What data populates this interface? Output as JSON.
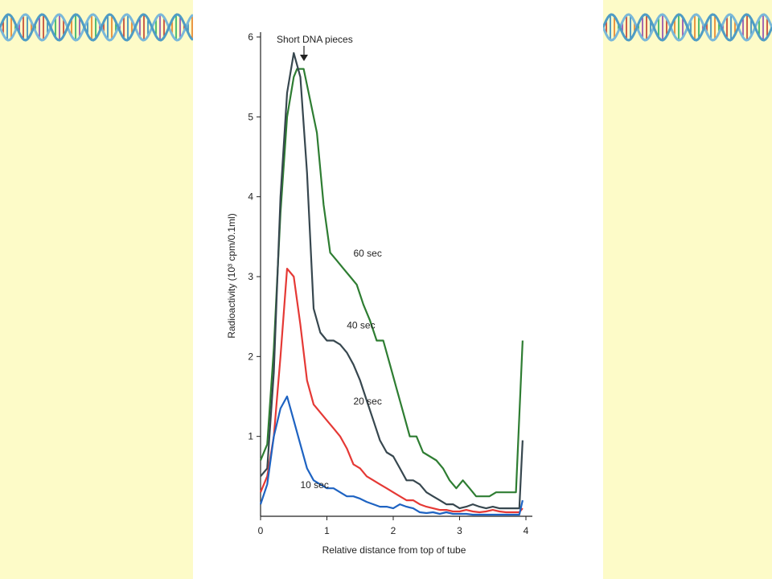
{
  "chart_data": {
    "type": "line",
    "xlabel": "Relative distance from top of tube",
    "ylabel": "Radioactivity (10³ cpm/0.1ml)",
    "xlim": [
      0,
      4
    ],
    "ylim": [
      0,
      6
    ],
    "x_ticks": [
      "0",
      "1",
      "2",
      "3",
      "4"
    ],
    "y_ticks": [
      "1",
      "2",
      "3",
      "4",
      "5",
      "6"
    ],
    "annotation": "Short DNA pieces",
    "series": [
      {
        "name": "60 sec",
        "color": "#2e7d32",
        "x": [
          0,
          0.1,
          0.2,
          0.3,
          0.4,
          0.5,
          0.55,
          0.65,
          0.75,
          0.85,
          0.95,
          1.05,
          1.15,
          1.25,
          1.35,
          1.45,
          1.55,
          1.65,
          1.75,
          1.85,
          1.95,
          2.05,
          2.15,
          2.25,
          2.35,
          2.45,
          2.55,
          2.65,
          2.75,
          2.85,
          2.95,
          3.05,
          3.15,
          3.25,
          3.35,
          3.45,
          3.55,
          3.65,
          3.75,
          3.85,
          3.95
        ],
        "y": [
          0.7,
          0.9,
          2.1,
          3.8,
          5.0,
          5.5,
          5.6,
          5.6,
          5.2,
          4.8,
          3.9,
          3.3,
          3.2,
          3.1,
          3.0,
          2.9,
          2.65,
          2.45,
          2.2,
          2.2,
          1.9,
          1.6,
          1.3,
          1.0,
          1.0,
          0.8,
          0.75,
          0.7,
          0.6,
          0.45,
          0.35,
          0.45,
          0.35,
          0.25,
          0.25,
          0.25,
          0.3,
          0.3,
          0.3,
          0.3,
          2.2
        ]
      },
      {
        "name": "40 sec",
        "color": "#37474f",
        "x": [
          0,
          0.1,
          0.2,
          0.3,
          0.4,
          0.5,
          0.6,
          0.7,
          0.8,
          0.9,
          1.0,
          1.1,
          1.2,
          1.3,
          1.4,
          1.5,
          1.6,
          1.7,
          1.8,
          1.9,
          2.0,
          2.1,
          2.2,
          2.3,
          2.4,
          2.5,
          2.6,
          2.7,
          2.8,
          2.9,
          3.0,
          3.1,
          3.2,
          3.3,
          3.4,
          3.5,
          3.6,
          3.7,
          3.8,
          3.9,
          3.95
        ],
        "y": [
          0.5,
          0.6,
          1.8,
          4.0,
          5.3,
          5.8,
          5.5,
          4.3,
          2.6,
          2.3,
          2.2,
          2.2,
          2.15,
          2.05,
          1.9,
          1.7,
          1.45,
          1.2,
          0.95,
          0.8,
          0.75,
          0.6,
          0.45,
          0.45,
          0.4,
          0.3,
          0.25,
          0.2,
          0.15,
          0.15,
          0.1,
          0.12,
          0.15,
          0.12,
          0.1,
          0.12,
          0.1,
          0.1,
          0.1,
          0.1,
          0.95
        ]
      },
      {
        "name": "20 sec",
        "color": "#e53935",
        "x": [
          0,
          0.1,
          0.2,
          0.3,
          0.4,
          0.5,
          0.6,
          0.7,
          0.8,
          0.9,
          1.0,
          1.1,
          1.2,
          1.3,
          1.4,
          1.5,
          1.6,
          1.7,
          1.8,
          1.9,
          2.0,
          2.1,
          2.2,
          2.3,
          2.4,
          2.5,
          2.6,
          2.7,
          2.8,
          2.9,
          3.0,
          3.1,
          3.2,
          3.3,
          3.4,
          3.5,
          3.6,
          3.7,
          3.8,
          3.9,
          3.95
        ],
        "y": [
          0.3,
          0.5,
          1.0,
          2.0,
          3.1,
          3.0,
          2.4,
          1.7,
          1.4,
          1.3,
          1.2,
          1.1,
          1.0,
          0.85,
          0.65,
          0.6,
          0.5,
          0.45,
          0.4,
          0.35,
          0.3,
          0.25,
          0.2,
          0.2,
          0.15,
          0.12,
          0.1,
          0.08,
          0.08,
          0.06,
          0.06,
          0.08,
          0.06,
          0.05,
          0.06,
          0.08,
          0.06,
          0.05,
          0.05,
          0.05,
          0.1
        ]
      },
      {
        "name": "10 sec",
        "color": "#1e63c2",
        "x": [
          0,
          0.1,
          0.2,
          0.3,
          0.4,
          0.5,
          0.6,
          0.7,
          0.8,
          0.9,
          1.0,
          1.1,
          1.2,
          1.3,
          1.4,
          1.5,
          1.6,
          1.7,
          1.8,
          1.9,
          2.0,
          2.1,
          2.2,
          2.3,
          2.4,
          2.5,
          2.6,
          2.7,
          2.8,
          2.9,
          3.0,
          3.1,
          3.2,
          3.3,
          3.4,
          3.5,
          3.6,
          3.7,
          3.8,
          3.9,
          3.95
        ],
        "y": [
          0.15,
          0.4,
          1.0,
          1.35,
          1.5,
          1.2,
          0.9,
          0.6,
          0.45,
          0.4,
          0.35,
          0.35,
          0.3,
          0.25,
          0.25,
          0.22,
          0.18,
          0.15,
          0.12,
          0.12,
          0.1,
          0.15,
          0.12,
          0.1,
          0.05,
          0.04,
          0.05,
          0.03,
          0.05,
          0.03,
          0.03,
          0.03,
          0.02,
          0.02,
          0.02,
          0.02,
          0.02,
          0.02,
          0.02,
          0.02,
          0.2
        ]
      }
    ],
    "series_labels": [
      {
        "text": "60 sec",
        "x": 1.4,
        "y": 3.25
      },
      {
        "text": "40 sec",
        "x": 1.3,
        "y": 2.35
      },
      {
        "text": "20 sec",
        "x": 1.4,
        "y": 1.4
      },
      {
        "text": "10 sec",
        "x": 0.6,
        "y": 0.35
      }
    ]
  }
}
